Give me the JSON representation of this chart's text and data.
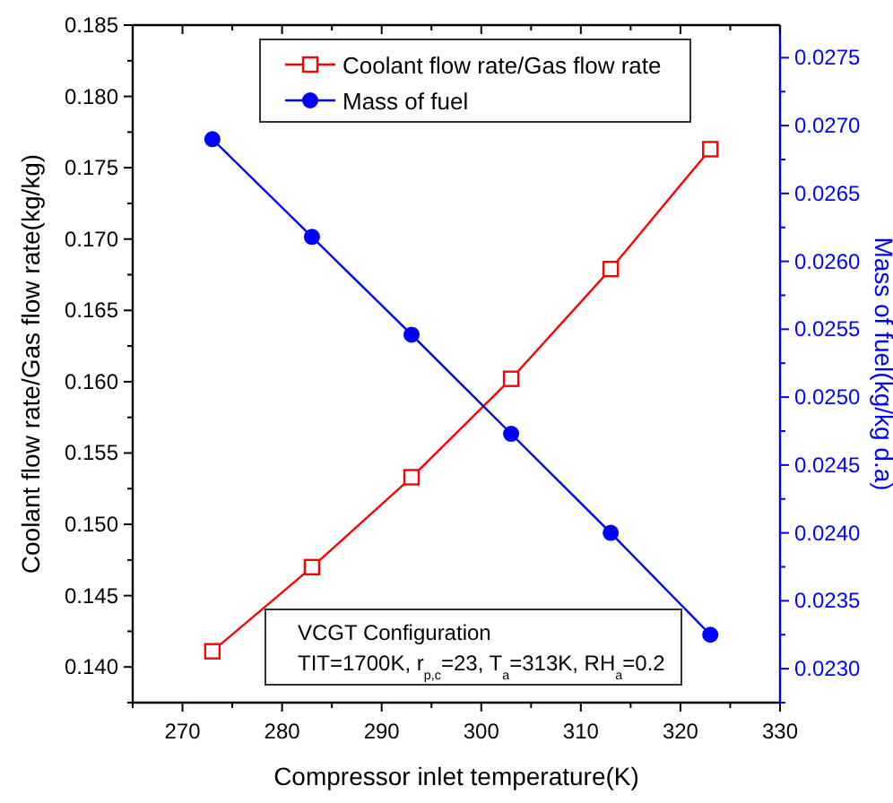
{
  "chart_data": {
    "type": "line",
    "xlabel": "Compressor inlet temperature(K)",
    "ylabel": "Coolant flow rate/Gas flow rate(kg/kg)",
    "y2label": "Mass of fuel(kg/kg d.a)",
    "x": [
      273,
      283,
      293,
      303,
      313,
      323
    ],
    "series": [
      {
        "name": "Coolant flow rate/Gas flow rate",
        "color": "#ff0000",
        "marker": "square",
        "values": [
          0.1411,
          0.147,
          0.1533,
          0.1602,
          0.1679,
          0.1763
        ]
      },
      {
        "name": "Mass of fuel",
        "color": "#0000ff",
        "marker": "circle",
        "axis": "y2",
        "values": [
          0.0269,
          0.02618,
          0.02546,
          0.02473,
          0.024,
          0.02325
        ]
      }
    ],
    "xlim": [
      265,
      330
    ],
    "xticks": [
      {
        "value": 265,
        "label": null
      },
      270,
      {
        "value": 275,
        "label": null
      },
      280,
      {
        "value": 285,
        "label": null
      },
      290,
      {
        "value": 295,
        "label": null
      },
      300,
      {
        "value": 305,
        "label": null
      },
      310,
      {
        "value": 315,
        "label": null
      },
      320,
      {
        "value": 325,
        "label": null
      },
      330
    ],
    "ylim": [
      0.1375,
      0.185
    ],
    "yticks": [
      {
        "value": 0.1375,
        "label": null
      },
      {
        "value": 0.14,
        "label": "0.140"
      },
      {
        "value": 0.1425,
        "label": null
      },
      {
        "value": 0.145,
        "label": "0.145"
      },
      {
        "value": 0.1475,
        "label": null
      },
      {
        "value": 0.15,
        "label": "0.150"
      },
      {
        "value": 0.1525,
        "label": null
      },
      {
        "value": 0.155,
        "label": "0.155"
      },
      {
        "value": 0.1575,
        "label": null
      },
      {
        "value": 0.16,
        "label": "0.160"
      },
      {
        "value": 0.1625,
        "label": null
      },
      {
        "value": 0.165,
        "label": "0.165"
      },
      {
        "value": 0.1675,
        "label": null
      },
      {
        "value": 0.17,
        "label": "0.170"
      },
      {
        "value": 0.1725,
        "label": null
      },
      {
        "value": 0.175,
        "label": "0.175"
      },
      {
        "value": 0.1775,
        "label": null
      },
      {
        "value": 0.18,
        "label": "0.180"
      },
      {
        "value": 0.1825,
        "label": null
      },
      {
        "value": 0.185,
        "label": "0.185"
      }
    ],
    "y2lim": [
      0.02275,
      0.02774
    ],
    "y2ticks": [
      {
        "value": 0.02275,
        "label": null
      },
      {
        "value": 0.023,
        "label": "0.0230"
      },
      {
        "value": 0.02325,
        "label": null
      },
      {
        "value": 0.0235,
        "label": "0.0235"
      },
      {
        "value": 0.02375,
        "label": null
      },
      {
        "value": 0.024,
        "label": "0.0240"
      },
      {
        "value": 0.02425,
        "label": null
      },
      {
        "value": 0.0245,
        "label": "0.0245"
      },
      {
        "value": 0.02475,
        "label": null
      },
      {
        "value": 0.025,
        "label": "0.0250"
      },
      {
        "value": 0.02525,
        "label": null
      },
      {
        "value": 0.0255,
        "label": "0.0255"
      },
      {
        "value": 0.02575,
        "label": null
      },
      {
        "value": 0.026,
        "label": "0.0260"
      },
      {
        "value": 0.02625,
        "label": null
      },
      {
        "value": 0.0265,
        "label": "0.0265"
      },
      {
        "value": 0.02675,
        "label": null
      },
      {
        "value": 0.027,
        "label": "0.0270"
      },
      {
        "value": 0.02725,
        "label": null
      },
      {
        "value": 0.0275,
        "label": "0.0275"
      }
    ],
    "annotations": [
      "VCGT Configuration",
      "TIT=1700K, r$_{p,c}$=23, T$_{a}$=313K, RH$_{a}$=0.2"
    ],
    "legend": "top",
    "grid": false,
    "line_style": "solid"
  }
}
